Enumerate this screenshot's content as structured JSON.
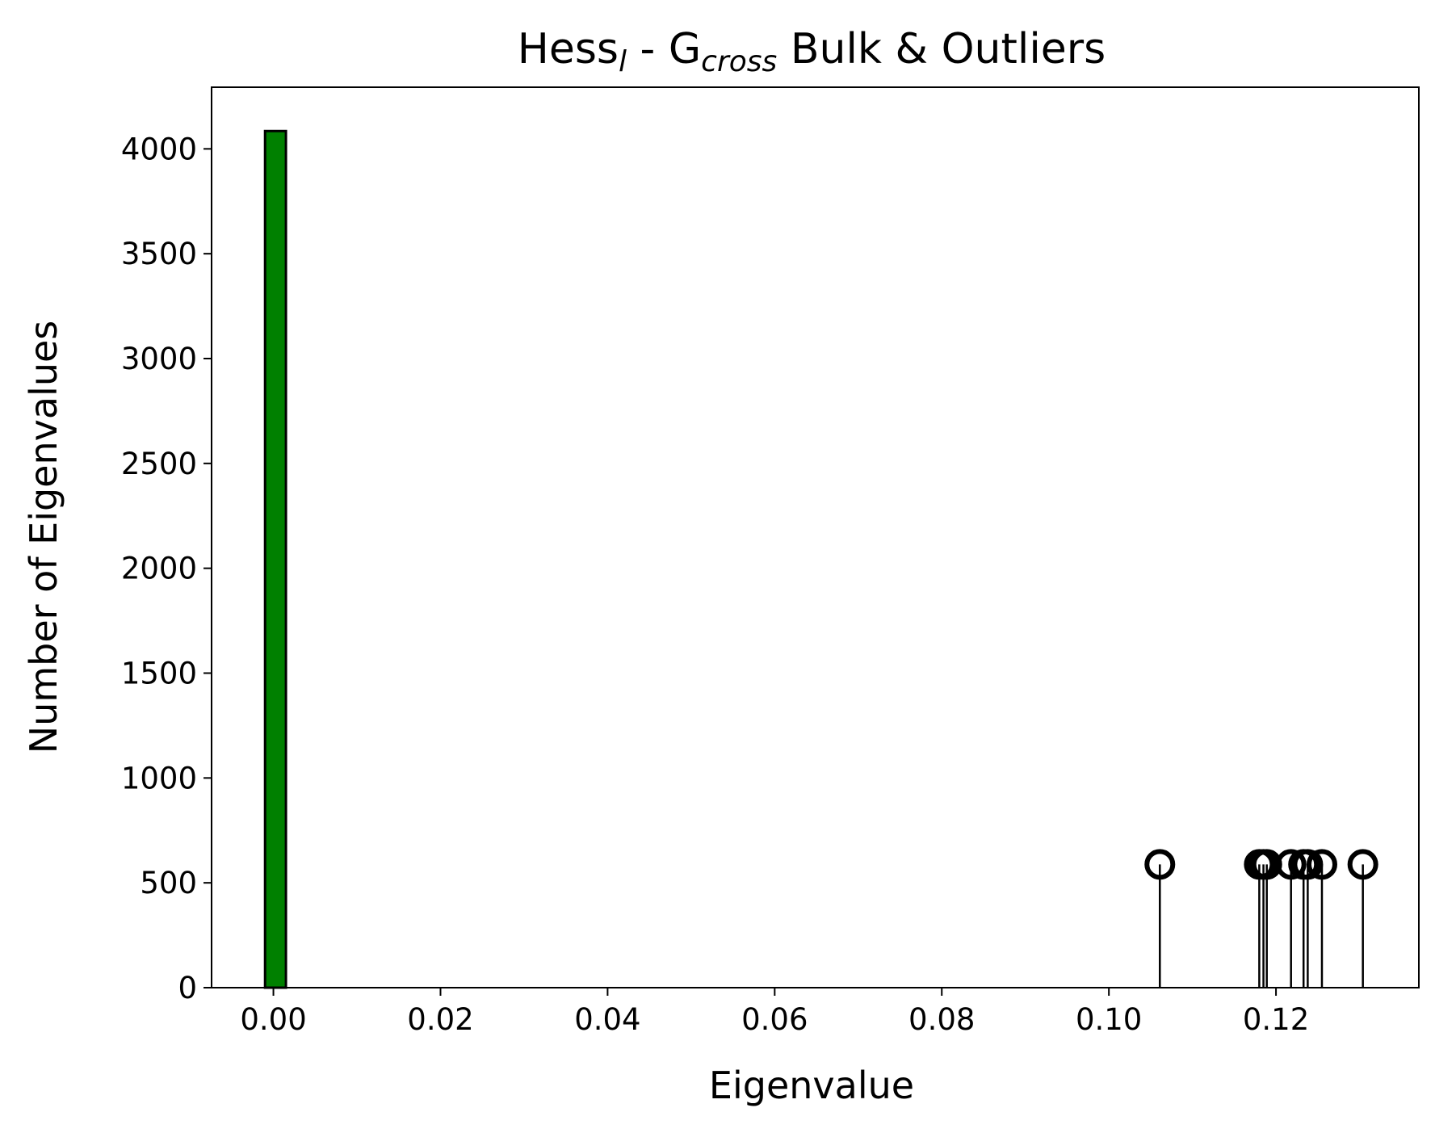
{
  "chart_data": {
    "type": "histogram",
    "title": [
      {
        "text": "Hess"
      },
      {
        "text": "l",
        "style": "subscript-italic"
      },
      {
        "text": " - G"
      },
      {
        "text": "cross",
        "style": "subscript-italic"
      },
      {
        "text": " Bulk & Outliers"
      }
    ],
    "x_label": "Eigenvalue",
    "y_label": "Number of Eigenvalues",
    "bins": [
      -0.001,
      0.0015
    ],
    "counts": [
      4085
    ],
    "color": "#008000",
    "edgecolor": "#000000",
    "outliers": {
      "x": [
        0.1061,
        0.118,
        0.1185,
        0.1189,
        0.1218,
        0.1233,
        0.1238,
        0.1255,
        0.1304
      ],
      "values": [
        588,
        588,
        588,
        588,
        588,
        588,
        588,
        588,
        588
      ],
      "color": "#000000"
    },
    "xlim": [
      -0.0074,
      0.1371
    ],
    "ylim": [
      0,
      4294
    ],
    "xticks": [
      {
        "value": 0,
        "label": "0.00"
      },
      {
        "value": 0.02,
        "label": "0.02"
      },
      {
        "value": 0.04,
        "label": "0.04"
      },
      {
        "value": 0.06,
        "label": "0.06"
      },
      {
        "value": 0.08,
        "label": "0.08"
      },
      {
        "value": 0.1,
        "label": "0.10"
      },
      {
        "value": 0.12,
        "label": "0.12"
      }
    ],
    "yticks": [
      0,
      500,
      1000,
      1500,
      2000,
      2500,
      3000,
      3500,
      4000
    ]
  }
}
